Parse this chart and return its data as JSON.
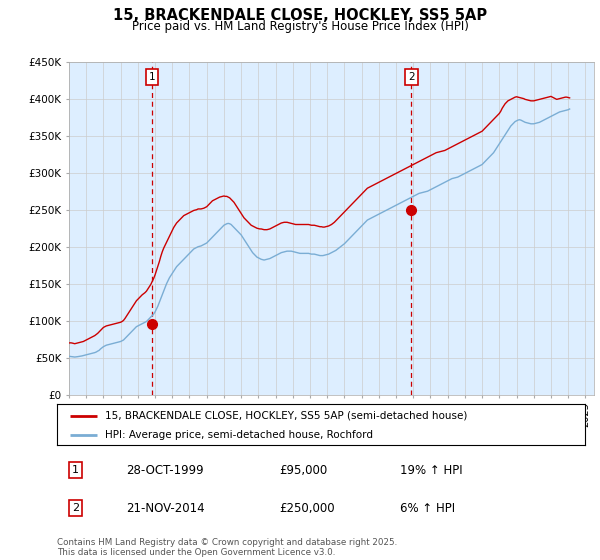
{
  "title": "15, BRACKENDALE CLOSE, HOCKLEY, SS5 5AP",
  "subtitle": "Price paid vs. HM Land Registry's House Price Index (HPI)",
  "ylim": [
    0,
    450000
  ],
  "yticks": [
    0,
    50000,
    100000,
    150000,
    200000,
    250000,
    300000,
    350000,
    400000,
    450000
  ],
  "ytick_labels": [
    "£0",
    "£50K",
    "£100K",
    "£150K",
    "£200K",
    "£250K",
    "£300K",
    "£350K",
    "£400K",
    "£450K"
  ],
  "xlim_start": 1995.0,
  "xlim_end": 2025.5,
  "legend_line1": "15, BRACKENDALE CLOSE, HOCKLEY, SS5 5AP (semi-detached house)",
  "legend_line2": "HPI: Average price, semi-detached house, Rochford",
  "sale1_label": "1",
  "sale1_date": "28-OCT-1999",
  "sale1_price": "£95,000",
  "sale1_hpi": "19% ↑ HPI",
  "sale1_year": 1999.82,
  "sale1_value": 95000,
  "sale2_label": "2",
  "sale2_date": "21-NOV-2014",
  "sale2_price": "£250,000",
  "sale2_hpi": "6% ↑ HPI",
  "sale2_year": 2014.89,
  "sale2_value": 250000,
  "line_color_property": "#cc0000",
  "line_color_hpi": "#7aadd4",
  "marker_color": "#cc0000",
  "vline_color": "#cc0000",
  "grid_color": "#cccccc",
  "chart_bg_color": "#ddeeff",
  "background_color": "#ffffff",
  "copyright_text": "Contains HM Land Registry data © Crown copyright and database right 2025.\nThis data is licensed under the Open Government Licence v3.0.",
  "hpi_years_monthly": true,
  "hpi_data_values": [
    52000,
    51800,
    51500,
    51200,
    51000,
    51200,
    51500,
    51800,
    52000,
    52500,
    53000,
    53500,
    54000,
    54500,
    55000,
    55500,
    56000,
    56500,
    57000,
    57800,
    59000,
    60000,
    62000,
    63500,
    65000,
    66000,
    67000,
    67500,
    68000,
    68500,
    69000,
    69500,
    70000,
    70500,
    71000,
    71500,
    72000,
    73000,
    74000,
    76000,
    78000,
    80000,
    82000,
    84000,
    86000,
    88000,
    90000,
    92000,
    93000,
    94000,
    95000,
    96000,
    97000,
    98000,
    99000,
    101000,
    103000,
    105000,
    107000,
    109000,
    112000,
    116000,
    120000,
    125000,
    130000,
    135000,
    140000,
    145000,
    150000,
    154000,
    158000,
    161000,
    164000,
    167000,
    170000,
    173000,
    175000,
    177000,
    179000,
    181000,
    183000,
    185000,
    187000,
    189000,
    191000,
    193000,
    195000,
    197000,
    198000,
    199000,
    200000,
    200500,
    201000,
    202000,
    203000,
    204000,
    205000,
    207000,
    209000,
    211000,
    213000,
    215000,
    217000,
    219000,
    221000,
    223000,
    225000,
    227000,
    229000,
    230000,
    231000,
    231500,
    231000,
    230000,
    228000,
    226000,
    224000,
    222000,
    220000,
    218000,
    216000,
    213000,
    210000,
    207000,
    204000,
    201000,
    198000,
    195000,
    192000,
    190000,
    188000,
    186000,
    185000,
    184000,
    183000,
    182500,
    182000,
    182500,
    183000,
    183500,
    184000,
    185000,
    186000,
    187000,
    188000,
    189000,
    190000,
    191000,
    192000,
    192500,
    193000,
    193500,
    194000,
    194000,
    194000,
    194000,
    193500,
    193000,
    192500,
    192000,
    191500,
    191000,
    191000,
    191000,
    191000,
    191000,
    191000,
    191000,
    190500,
    190000,
    190000,
    190000,
    189500,
    189000,
    188500,
    188000,
    188000,
    188000,
    188500,
    189000,
    189500,
    190000,
    191000,
    192000,
    193000,
    194000,
    195000,
    196500,
    198000,
    199500,
    201000,
    202500,
    204000,
    206000,
    208000,
    210000,
    212000,
    214000,
    216000,
    218000,
    220000,
    222000,
    224000,
    226000,
    228000,
    230000,
    232000,
    234000,
    236000,
    237000,
    238000,
    239000,
    240000,
    241000,
    242000,
    243000,
    244000,
    245000,
    246000,
    247000,
    248000,
    249000,
    250000,
    251000,
    252000,
    253000,
    254000,
    255000,
    256000,
    257000,
    258000,
    259000,
    260000,
    261000,
    262000,
    263000,
    264000,
    265000,
    266000,
    267000,
    268000,
    269000,
    270000,
    271000,
    272000,
    272500,
    273000,
    273500,
    274000,
    274500,
    275000,
    276000,
    277000,
    278000,
    279000,
    280000,
    281000,
    282000,
    283000,
    284000,
    285000,
    286000,
    287000,
    288000,
    289000,
    290000,
    291000,
    292000,
    292500,
    293000,
    293500,
    294000,
    295000,
    296000,
    297000,
    298000,
    299000,
    300000,
    301000,
    302000,
    303000,
    304000,
    305000,
    306000,
    307000,
    308000,
    309000,
    310000,
    311000,
    313000,
    315000,
    317000,
    319000,
    321000,
    323000,
    325000,
    327000,
    330000,
    333000,
    336000,
    339000,
    342000,
    345000,
    348000,
    351000,
    354000,
    357000,
    360000,
    363000,
    365000,
    367000,
    369000,
    370000,
    371000,
    371500,
    371000,
    370000,
    369000,
    368000,
    367500,
    367000,
    366500,
    366000,
    366000,
    366000,
    366500,
    367000,
    367500,
    368000,
    369000,
    370000,
    371000,
    372000,
    373000,
    374000,
    375000,
    376000,
    377000,
    378000,
    379000,
    380000,
    381000,
    382000,
    382500,
    383000,
    383500,
    384000,
    384500,
    385000,
    386000
  ],
  "prop_data_values": [
    70000,
    70200,
    70000,
    69500,
    69000,
    69500,
    70000,
    70500,
    71000,
    71500,
    72000,
    73000,
    74000,
    75000,
    76000,
    77000,
    78000,
    79000,
    80000,
    81500,
    83000,
    85000,
    87000,
    89000,
    91000,
    92000,
    93000,
    93500,
    94000,
    94500,
    95000,
    95500,
    96000,
    96500,
    97000,
    97500,
    98000,
    99000,
    100500,
    103000,
    106000,
    109000,
    112000,
    115000,
    118000,
    121000,
    124000,
    127000,
    129000,
    131000,
    133000,
    135000,
    136500,
    138000,
    140000,
    143000,
    146000,
    149000,
    153000,
    157000,
    162000,
    168000,
    174000,
    180000,
    187000,
    193000,
    198000,
    202000,
    206000,
    210000,
    214000,
    218000,
    222000,
    226000,
    229000,
    232000,
    234000,
    236000,
    238000,
    240000,
    242000,
    243000,
    244000,
    245000,
    246000,
    247000,
    248000,
    249000,
    249500,
    250000,
    251000,
    251000,
    251000,
    251500,
    252000,
    253000,
    254000,
    256000,
    258000,
    260000,
    262000,
    263000,
    264000,
    265000,
    266000,
    267000,
    267500,
    268000,
    268500,
    268000,
    268000,
    267000,
    266000,
    264000,
    262000,
    260000,
    257000,
    254000,
    251000,
    248000,
    245000,
    242000,
    239000,
    237000,
    235000,
    233000,
    231000,
    229000,
    228000,
    227000,
    226000,
    225000,
    224500,
    224000,
    224000,
    223500,
    223000,
    223000,
    223000,
    223500,
    224000,
    225000,
    226000,
    227000,
    228000,
    229000,
    230000,
    231000,
    232000,
    232500,
    233000,
    233000,
    233000,
    232500,
    232000,
    231500,
    231000,
    230500,
    230000,
    230000,
    230000,
    230000,
    230000,
    230000,
    230000,
    230000,
    230000,
    230000,
    229500,
    229000,
    229000,
    229000,
    228500,
    228000,
    227500,
    227000,
    227000,
    226500,
    226500,
    227000,
    227500,
    228000,
    229000,
    230000,
    231500,
    233000,
    235000,
    237000,
    239000,
    241000,
    243000,
    245000,
    247000,
    249000,
    251000,
    253000,
    255000,
    257000,
    259000,
    261000,
    263000,
    265000,
    267000,
    269000,
    271000,
    273000,
    275000,
    277000,
    279000,
    280000,
    281000,
    282000,
    283000,
    284000,
    285000,
    286000,
    287000,
    288000,
    289000,
    290000,
    291000,
    292000,
    293000,
    294000,
    295000,
    296000,
    297000,
    298000,
    299000,
    300000,
    301000,
    302000,
    303000,
    304000,
    305000,
    306000,
    307000,
    308000,
    309000,
    310000,
    311000,
    312000,
    313000,
    314000,
    315000,
    316000,
    317000,
    318000,
    319000,
    320000,
    321000,
    322000,
    323000,
    324000,
    325000,
    326000,
    327000,
    327500,
    328000,
    328500,
    329000,
    329500,
    330000,
    331000,
    332000,
    333000,
    334000,
    335000,
    336000,
    337000,
    338000,
    339000,
    340000,
    341000,
    342000,
    343000,
    344000,
    345000,
    346000,
    347000,
    348000,
    349000,
    350000,
    351000,
    352000,
    353000,
    354000,
    355000,
    356000,
    358000,
    360000,
    362000,
    364000,
    366000,
    368000,
    370000,
    372000,
    374000,
    376000,
    378000,
    380000,
    383000,
    387000,
    390000,
    393000,
    395000,
    397000,
    398000,
    399000,
    400000,
    401000,
    402000,
    402500,
    402000,
    401500,
    401000,
    400500,
    400000,
    399000,
    398500,
    398000,
    397500,
    397000,
    397000,
    397000,
    397500,
    398000,
    398500,
    399000,
    399500,
    400000,
    400500,
    401000,
    401500,
    402000,
    402500,
    403000,
    402000,
    401000,
    400000,
    399000,
    399500,
    400000,
    400500,
    401000,
    401500,
    402000,
    402000,
    401500,
    401000
  ]
}
